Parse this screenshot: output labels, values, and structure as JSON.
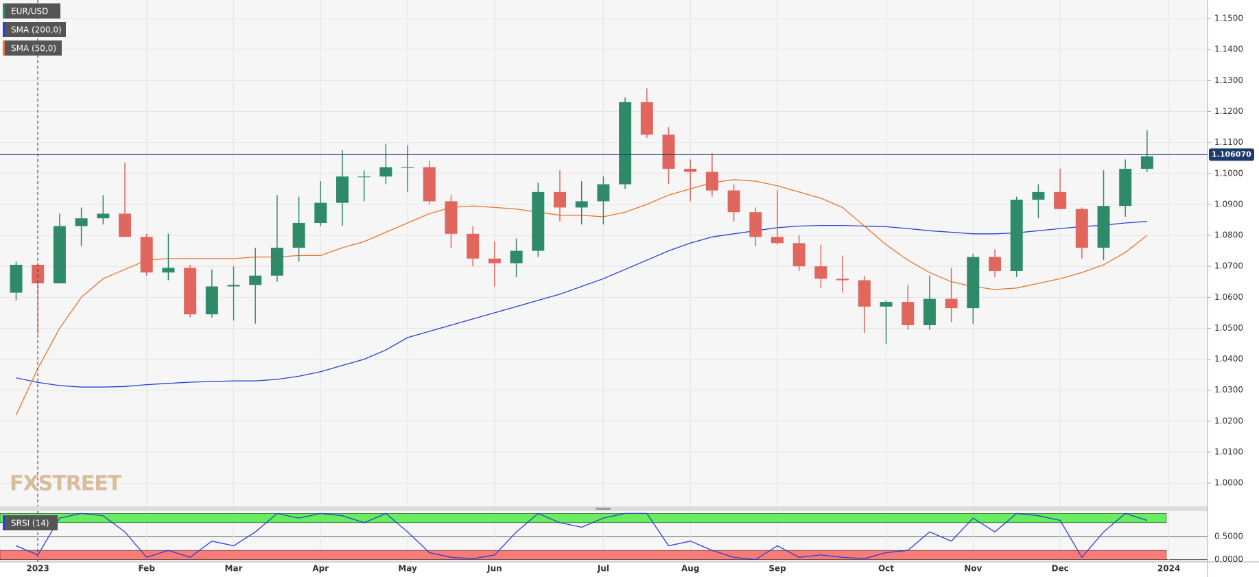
{
  "chart_data": [
    {
      "type": "candlestick",
      "name": "EUR/USD",
      "categories": [
        null,
        "2023",
        null,
        null,
        null,
        null,
        "Feb",
        null,
        null,
        null,
        "Mar",
        null,
        null,
        null,
        "Apr",
        null,
        null,
        null,
        "May",
        null,
        null,
        null,
        "Jun",
        null,
        null,
        null,
        null,
        "Jul",
        null,
        null,
        null,
        "Aug",
        null,
        null,
        null,
        "Sep",
        null,
        null,
        null,
        null,
        "Oct",
        null,
        null,
        null,
        "Nov",
        null,
        null,
        null,
        "Dec",
        null,
        null,
        null,
        null,
        "2024"
      ],
      "open": [
        1.0615,
        1.0705,
        1.0645,
        1.083,
        1.0855,
        1.087,
        1.0795,
        1.068,
        1.0695,
        1.0545,
        1.0635,
        1.064,
        1.067,
        1.076,
        1.084,
        1.0905,
        1.099,
        1.099,
        1.102,
        1.102,
        1.091,
        1.0805,
        1.0725,
        1.071,
        1.075,
        1.094,
        1.089,
        1.091,
        1.0965,
        1.123,
        1.1125,
        1.1015,
        1.1005,
        1.0945,
        1.0875,
        1.0795,
        1.0775,
        1.07,
        1.066,
        1.0655,
        1.057,
        1.0585,
        1.051,
        1.0595,
        1.0565,
        1.073,
        1.0685,
        1.0915,
        1.094,
        1.0885,
        1.076,
        1.0895,
        1.1015,
        null
      ],
      "high": [
        1.0715,
        1.071,
        1.087,
        1.089,
        1.093,
        1.1035,
        1.0805,
        1.0805,
        1.0705,
        1.069,
        1.07,
        1.076,
        1.093,
        1.0925,
        1.0975,
        1.1075,
        1.101,
        1.1095,
        1.109,
        1.104,
        1.093,
        1.083,
        1.078,
        1.079,
        1.097,
        1.101,
        1.0975,
        1.099,
        1.1245,
        1.1275,
        1.115,
        1.1045,
        1.1065,
        1.0965,
        1.089,
        1.0945,
        1.08,
        1.077,
        1.0735,
        1.067,
        1.059,
        1.064,
        1.067,
        1.0695,
        1.074,
        1.0755,
        1.0925,
        1.0965,
        1.1015,
        1.089,
        1.101,
        1.1045,
        1.114,
        null
      ],
      "low": [
        1.059,
        1.048,
        1.065,
        1.0765,
        1.0835,
        1.0795,
        1.067,
        1.0655,
        1.0535,
        1.0535,
        1.0525,
        1.0515,
        1.065,
        1.0715,
        1.083,
        1.083,
        1.091,
        1.0965,
        1.094,
        1.09,
        1.076,
        1.07,
        1.0635,
        1.0665,
        1.073,
        1.0845,
        1.0835,
        1.0835,
        1.095,
        1.1115,
        1.0965,
        1.091,
        1.0925,
        1.0845,
        1.0765,
        1.077,
        1.0685,
        1.063,
        1.0615,
        1.0485,
        1.045,
        1.0495,
        1.0495,
        1.052,
        1.0515,
        1.0665,
        1.0665,
        1.0855,
        1.089,
        1.0725,
        1.072,
        1.086,
        1.1005,
        null
      ],
      "close": [
        1.0705,
        1.0645,
        1.083,
        1.0855,
        1.087,
        1.0795,
        1.068,
        1.0695,
        1.0545,
        1.0635,
        1.064,
        1.067,
        1.076,
        1.084,
        1.0905,
        1.099,
        1.099,
        1.102,
        1.102,
        1.091,
        1.0805,
        1.0725,
        1.071,
        1.075,
        1.094,
        1.089,
        1.091,
        1.0965,
        1.123,
        1.1125,
        1.1015,
        1.1005,
        1.0945,
        1.0875,
        1.0795,
        1.0775,
        1.07,
        1.066,
        1.0655,
        1.057,
        1.0585,
        1.051,
        1.0595,
        1.0565,
        1.073,
        1.0685,
        1.0915,
        1.094,
        1.0885,
        1.076,
        1.0895,
        1.1015,
        1.1055,
        null
      ],
      "up_color": "#2f8a69",
      "down_color": "#e0665e",
      "series": [
        {
          "name": "SMA (200,0)",
          "color": "#2a3fd6",
          "values": [
            1.034,
            1.0325,
            1.0315,
            1.031,
            1.031,
            1.0312,
            1.0318,
            1.0322,
            1.0326,
            1.0328,
            1.033,
            1.033,
            1.0335,
            1.0345,
            1.036,
            1.038,
            1.04,
            1.043,
            1.047,
            1.049,
            1.051,
            1.053,
            1.055,
            1.057,
            1.059,
            1.061,
            1.0635,
            1.066,
            1.069,
            1.072,
            1.075,
            1.0775,
            1.0795,
            1.0805,
            1.0815,
            1.0825,
            1.083,
            1.0832,
            1.0832,
            1.083,
            1.0828,
            1.0822,
            1.0815,
            1.081,
            1.0805,
            1.0805,
            1.0808,
            1.0815,
            1.0822,
            1.0828,
            1.0833,
            1.084,
            1.0845,
            null
          ]
        },
        {
          "name": "SMA (50,0)",
          "color": "#e8742f",
          "values": [
            1.022,
            1.037,
            1.05,
            1.06,
            1.066,
            1.069,
            1.072,
            1.0725,
            1.0725,
            1.0725,
            1.0725,
            1.073,
            1.073,
            1.0735,
            1.0735,
            1.076,
            1.078,
            1.081,
            1.084,
            1.087,
            1.089,
            1.0895,
            1.089,
            1.0885,
            1.0875,
            1.0865,
            1.0865,
            1.086,
            1.0875,
            1.09,
            1.093,
            1.095,
            1.097,
            1.098,
            1.0975,
            1.096,
            1.094,
            1.092,
            1.089,
            1.083,
            1.077,
            1.072,
            1.068,
            1.065,
            1.0635,
            1.0625,
            1.063,
            1.0645,
            1.066,
            1.068,
            1.0705,
            1.0745,
            1.08,
            null
          ]
        }
      ],
      "last_price": {
        "value": 1.10607,
        "label": "1.106070"
      },
      "ylim": [
        0.9925,
        1.156
      ],
      "yticks": [
        {
          "value": 1.0,
          "label": "1.0000"
        },
        {
          "value": 1.01,
          "label": "1.0100"
        },
        {
          "value": 1.02,
          "label": "1.0200"
        },
        {
          "value": 1.03,
          "label": "1.0300"
        },
        {
          "value": 1.04,
          "label": "1.0400"
        },
        {
          "value": 1.05,
          "label": "1.0500"
        },
        {
          "value": 1.06,
          "label": "1.0600"
        },
        {
          "value": 1.07,
          "label": "1.0700"
        },
        {
          "value": 1.08,
          "label": "1.0800"
        },
        {
          "value": 1.09,
          "label": "1.0900"
        },
        {
          "value": 1.1,
          "label": "1.1000"
        },
        {
          "value": 1.11,
          "label": "1.1100"
        },
        {
          "value": 1.12,
          "label": "1.1200"
        },
        {
          "value": 1.13,
          "label": "1.1300"
        },
        {
          "value": 1.14,
          "label": "1.1400"
        },
        {
          "value": 1.15,
          "label": "1.1500"
        }
      ],
      "grid": true,
      "watermark": "FXSTREET"
    },
    {
      "type": "line",
      "series": [
        {
          "name": "SRSI (14)",
          "color": "#2a3fd6",
          "values": [
            0.3,
            0.1,
            0.9,
            1.0,
            0.95,
            0.6,
            0.05,
            0.2,
            0.05,
            0.4,
            0.3,
            0.6,
            1.0,
            0.9,
            1.0,
            0.95,
            0.8,
            1.0,
            0.6,
            0.15,
            0.05,
            0.02,
            0.1,
            0.6,
            1.0,
            0.8,
            0.7,
            0.9,
            1.0,
            1.0,
            0.3,
            0.4,
            0.2,
            0.05,
            0.0,
            0.3,
            0.05,
            0.1,
            0.05,
            0.02,
            0.15,
            0.2,
            0.6,
            0.4,
            0.9,
            0.6,
            1.0,
            0.95,
            0.85,
            0.05,
            0.6,
            1.0,
            0.85,
            null
          ]
        }
      ],
      "bands": [
        {
          "from": 0.8,
          "to": 1.0,
          "color": "#66ee5e"
        },
        {
          "from": 0.0,
          "to": 0.2,
          "color": "#f87b78"
        }
      ],
      "ylim": [
        -0.05,
        1.05
      ],
      "yticks": [
        {
          "value": 0,
          "label": "0.0000"
        },
        {
          "value": 0.5,
          "label": "0.5000"
        }
      ]
    }
  ]
}
